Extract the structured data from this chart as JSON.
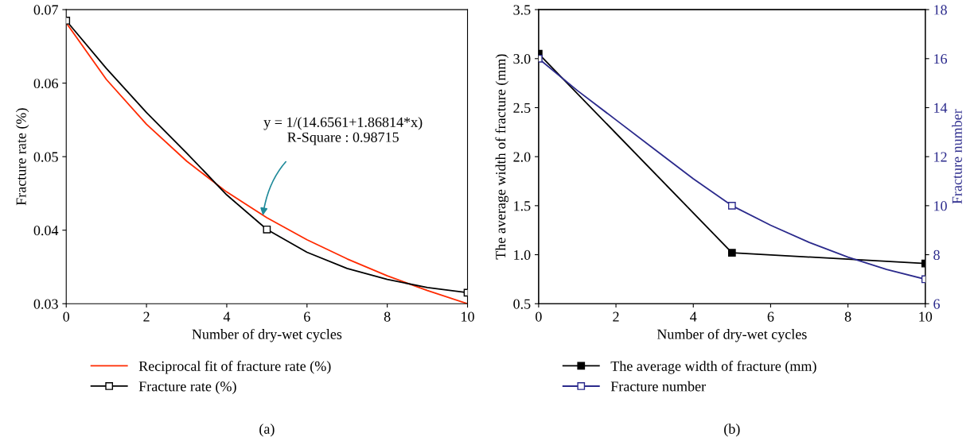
{
  "chart_data": [
    {
      "type": "line",
      "xlabel": "Number of dry-wet cycles",
      "ylabel": "Fracture rate (%)",
      "xlim": [
        0,
        10
      ],
      "xticks": [
        0,
        2,
        4,
        6,
        8,
        10
      ],
      "ylim": [
        0.03,
        0.07
      ],
      "yticks": [
        0.03,
        0.04,
        0.05,
        0.06,
        0.07
      ],
      "grid": false,
      "legend": "bottom",
      "series": [
        {
          "name": "Reciprocal fit of fracture rate (%)",
          "color": "#ff2a00",
          "marker": "none",
          "x": [
            0,
            1,
            2,
            3,
            4,
            5,
            6,
            7,
            8,
            9,
            10
          ],
          "values": [
            0.0682,
            0.0605,
            0.0544,
            0.0494,
            0.0452,
            0.0417,
            0.0387,
            0.0361,
            0.0338,
            0.0318,
            0.03
          ]
        },
        {
          "name": "Fracture rate (%)",
          "color": "#000000",
          "marker": "none",
          "x": [
            0,
            1,
            2,
            3,
            4,
            5,
            6,
            7,
            8,
            9,
            10
          ],
          "values": [
            0.0685,
            0.062,
            0.056,
            0.0505,
            0.0448,
            0.0401,
            0.037,
            0.0348,
            0.0333,
            0.0322,
            0.0315
          ]
        },
        {
          "type": "scatter",
          "color": "#000000",
          "marker": "square",
          "x": [
            0,
            5,
            10
          ],
          "values": [
            0.0685,
            0.0401,
            0.0315
          ]
        }
      ],
      "annotations": [
        {
          "text": "y = 1/(14.6561+1.86814*x)\nR-Square : 0.98715",
          "x": 4.9,
          "y": 0.042
        },
        "(a)"
      ]
    },
    {
      "type": "line",
      "xlabel": "Number of dry-wet cycles",
      "ylabel": "The average width of fracture (mm)",
      "y2label": "Fracture number",
      "xlim": [
        0,
        10
      ],
      "xticks": [
        0,
        2,
        4,
        6,
        8,
        10
      ],
      "ylim": [
        0.5,
        3.5
      ],
      "yticks": [
        {
          "value": 0.5,
          "label": "0.5"
        },
        {
          "value": 1,
          "label": "1.0"
        },
        {
          "value": 1.5,
          "label": "1.5"
        },
        {
          "value": 2,
          "label": "2.0"
        },
        {
          "value": 2.5,
          "label": "2.5"
        },
        {
          "value": 3,
          "label": "3.0"
        },
        {
          "value": 3.5,
          "label": "3.5"
        }
      ],
      "y2lim": [
        6,
        18
      ],
      "y2ticks": [
        6,
        8,
        10,
        12,
        14,
        16,
        18
      ],
      "grid": false,
      "legend": "bottom",
      "series": [
        {
          "name": "The average width of fracture (mm)",
          "color": "#000000",
          "marker": "square",
          "x": [
            0,
            5,
            10
          ],
          "values": [
            3.05,
            1.02,
            0.91
          ]
        },
        {
          "name": "Fracture number",
          "color": "#2b2a8c",
          "marker": "none",
          "axis": "y2",
          "x": [
            0,
            1,
            2,
            3,
            4,
            5,
            6,
            7,
            8,
            9,
            10
          ],
          "values": [
            16,
            14.7,
            13.5,
            12.3,
            11.1,
            10,
            9.2,
            8.5,
            7.9,
            7.4,
            7
          ]
        },
        {
          "type": "scatter",
          "color": "#2b2a8c",
          "marker": "square",
          "axis": "y2",
          "x": [
            0,
            5,
            10
          ],
          "values": [
            16,
            10,
            7
          ]
        }
      ],
      "annotations": [
        "(b)"
      ]
    }
  ]
}
